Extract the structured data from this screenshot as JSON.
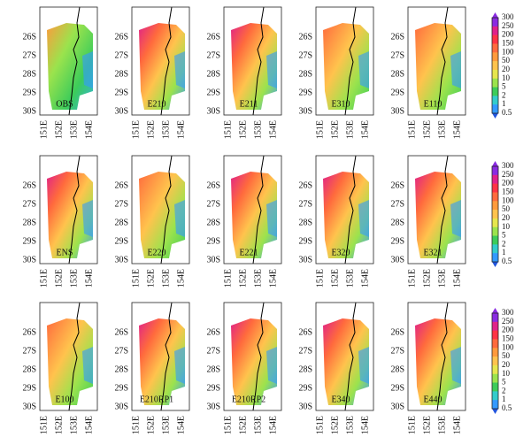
{
  "panels": [
    {
      "label": "OBS"
    },
    {
      "label": "E210"
    },
    {
      "label": "E211"
    },
    {
      "label": "E310"
    },
    {
      "label": "E110"
    },
    {
      "label": "ENS"
    },
    {
      "label": "E220"
    },
    {
      "label": "E221"
    },
    {
      "label": "E320"
    },
    {
      "label": "E321"
    },
    {
      "label": "E100"
    },
    {
      "label": "E210RP1"
    },
    {
      "label": "E210RP2"
    },
    {
      "label": "E340"
    },
    {
      "label": "E440"
    }
  ],
  "latitude_ticks": [
    "26S",
    "27S",
    "28S",
    "29S",
    "30S"
  ],
  "longitude_ticks": [
    "151E",
    "152E",
    "153E",
    "154E"
  ],
  "colorbar": {
    "labels": [
      "300",
      "250",
      "200",
      "150",
      "100",
      "50",
      "20",
      "10",
      "5",
      "2",
      "1",
      "0.5"
    ]
  }
}
